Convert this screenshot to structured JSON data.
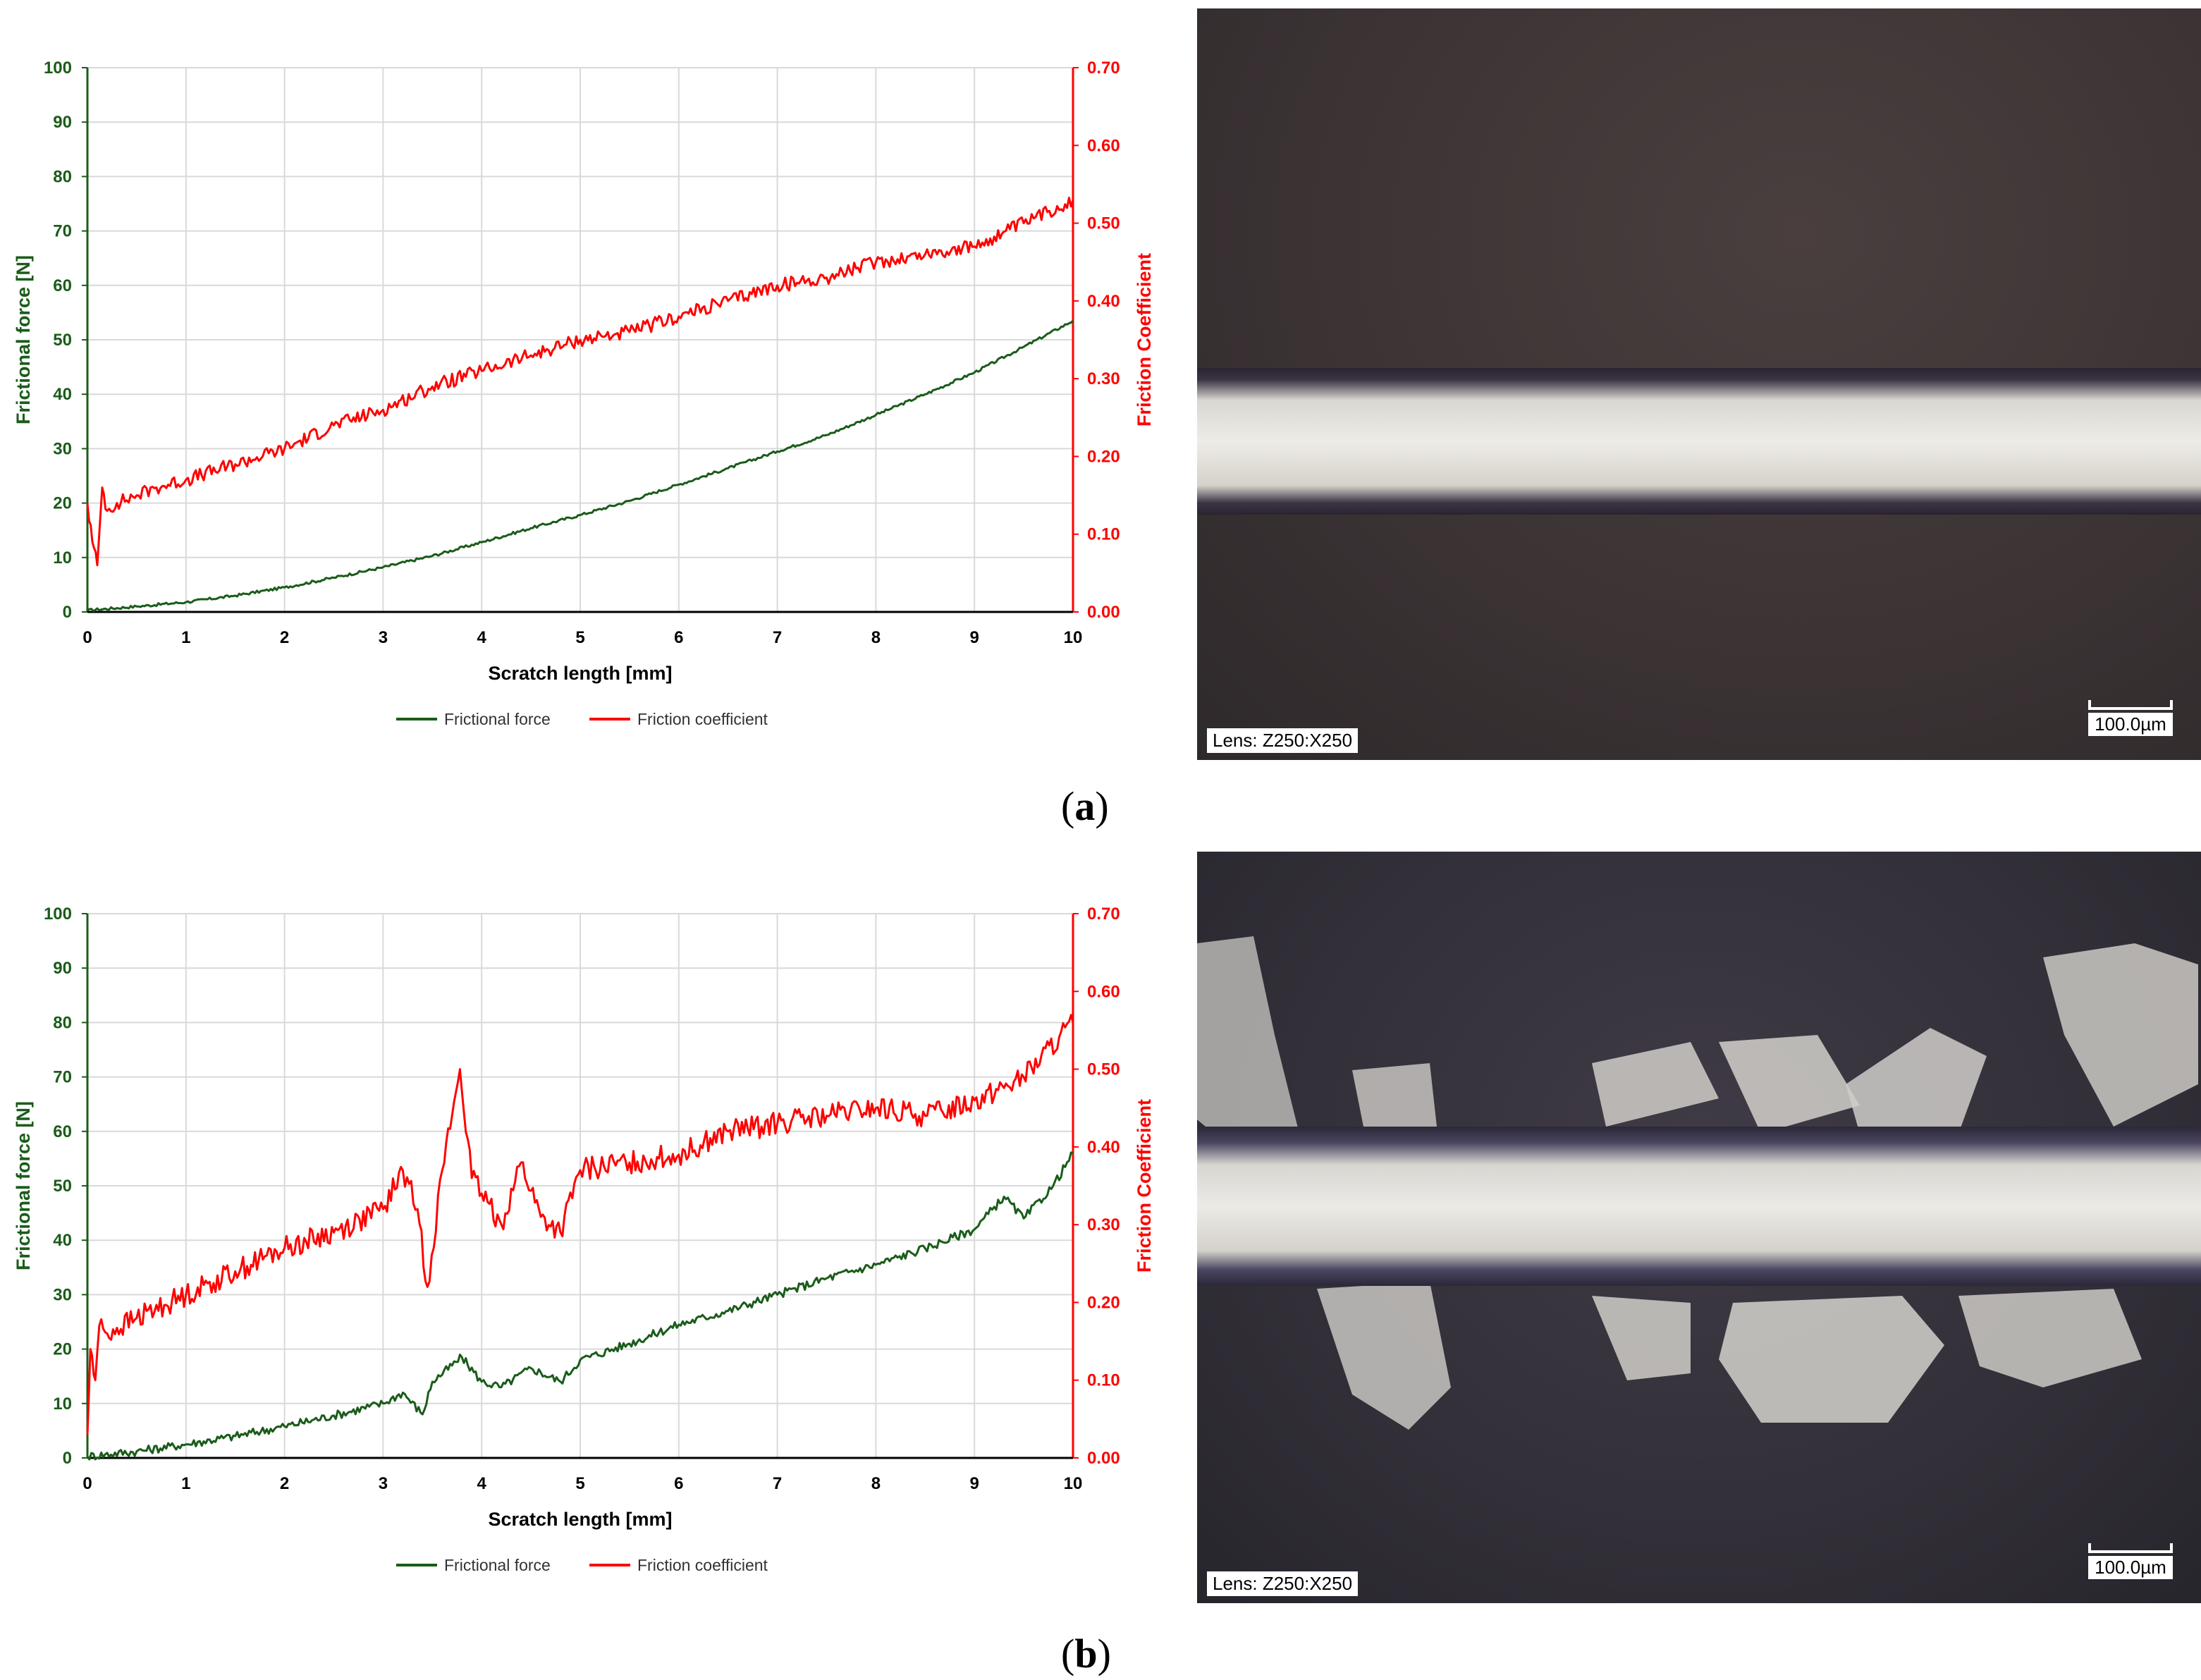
{
  "chart_data": [
    {
      "type": "line",
      "panel": "(a)",
      "xlabel": "Scratch length [mm]",
      "ylabel": "Frictional force [N]",
      "y2label": "Friction Coefficient",
      "xlim": [
        0,
        10
      ],
      "ylim": [
        0,
        100
      ],
      "y2lim": [
        0,
        0.7
      ],
      "xticks": [
        "0",
        "1",
        "2",
        "3",
        "4",
        "5",
        "6",
        "7",
        "8",
        "9",
        "10"
      ],
      "yticks": [
        "0",
        "10",
        "20",
        "30",
        "40",
        "50",
        "60",
        "70",
        "80",
        "90",
        "100"
      ],
      "y2ticks": [
        "0.00",
        "0.10",
        "0.20",
        "0.30",
        "0.40",
        "0.50",
        "0.60",
        "0.70"
      ],
      "grid": true,
      "legend_position": "bottom",
      "series": [
        {
          "name": "Frictional force",
          "axis": "left",
          "color": "#1a5c1a",
          "x": [
            0,
            0.5,
            1,
            1.5,
            2,
            2.5,
            3,
            3.5,
            4,
            4.5,
            5,
            5.5,
            6,
            6.5,
            7,
            7.5,
            8,
            8.5,
            9,
            9.5,
            10
          ],
          "y": [
            0.3,
            1.0,
            1.8,
            3.0,
            4.5,
            6.3,
            8.2,
            10.3,
            12.8,
            15.4,
            17.8,
            20.4,
            23.4,
            26.4,
            29.5,
            32.5,
            36.2,
            40.0,
            44.0,
            48.7,
            53.5
          ]
        },
        {
          "name": "Friction coefficient",
          "axis": "right",
          "color": "#ff0000",
          "x": [
            0,
            0.05,
            0.1,
            0.15,
            0.2,
            0.3,
            0.5,
            0.7,
            1,
            1.5,
            2,
            2.5,
            3,
            3.5,
            4,
            4.5,
            5,
            5.5,
            6,
            6.5,
            7,
            7.5,
            8,
            8.5,
            9,
            9.5,
            10
          ],
          "y": [
            0.14,
            0.09,
            0.06,
            0.16,
            0.13,
            0.14,
            0.15,
            0.16,
            0.17,
            0.19,
            0.21,
            0.24,
            0.26,
            0.29,
            0.31,
            0.33,
            0.35,
            0.36,
            0.38,
            0.4,
            0.42,
            0.43,
            0.45,
            0.46,
            0.47,
            0.5,
            0.53
          ]
        }
      ]
    },
    {
      "type": "line",
      "panel": "(b)",
      "xlabel": "Scratch length [mm]",
      "ylabel": "Frictional force [N]",
      "y2label": "Friction Coefficient",
      "xlim": [
        0,
        10
      ],
      "ylim": [
        0,
        100
      ],
      "y2lim": [
        0,
        0.7
      ],
      "xticks": [
        "0",
        "1",
        "2",
        "3",
        "4",
        "5",
        "6",
        "7",
        "8",
        "9",
        "10"
      ],
      "yticks": [
        "0",
        "10",
        "20",
        "30",
        "40",
        "50",
        "60",
        "70",
        "80",
        "90",
        "100"
      ],
      "y2ticks": [
        "0.00",
        "0.10",
        "0.20",
        "0.30",
        "0.40",
        "0.50",
        "0.60",
        "0.70"
      ],
      "grid": true,
      "legend_position": "bottom",
      "series": [
        {
          "name": "Frictional force",
          "axis": "left",
          "color": "#1a5c1a",
          "x": [
            0,
            0.5,
            1,
            1.5,
            2,
            2.5,
            3,
            3.2,
            3.4,
            3.5,
            3.8,
            4,
            4.2,
            4.5,
            4.8,
            5,
            5.5,
            6,
            6.5,
            7,
            7.5,
            8,
            8.5,
            9,
            9.3,
            9.5,
            9.8,
            10
          ],
          "y": [
            0.3,
            1.2,
            2.5,
            4.0,
            5.8,
            7.8,
            10.0,
            12.0,
            8.0,
            14.0,
            18.5,
            14.0,
            13.0,
            16.5,
            14.0,
            18.0,
            21.0,
            24.5,
            27.0,
            30.0,
            33.0,
            35.5,
            38.5,
            42.0,
            48.0,
            44.0,
            50.0,
            56.0
          ]
        },
        {
          "name": "Friction coefficient",
          "axis": "right",
          "color": "#ff0000",
          "x": [
            0,
            0.03,
            0.08,
            0.12,
            0.2,
            0.5,
            1,
            1.5,
            2,
            2.5,
            3,
            3.2,
            3.35,
            3.45,
            3.6,
            3.78,
            3.9,
            4,
            4.2,
            4.4,
            4.6,
            4.8,
            5,
            5.5,
            6,
            6.5,
            7,
            7.5,
            8,
            8.5,
            9,
            9.5,
            10
          ],
          "y": [
            0.03,
            0.14,
            0.1,
            0.17,
            0.16,
            0.18,
            0.21,
            0.24,
            0.27,
            0.29,
            0.32,
            0.37,
            0.32,
            0.22,
            0.37,
            0.5,
            0.36,
            0.34,
            0.3,
            0.38,
            0.31,
            0.29,
            0.37,
            0.38,
            0.39,
            0.42,
            0.43,
            0.44,
            0.45,
            0.44,
            0.46,
            0.49,
            0.56
          ]
        }
      ]
    }
  ],
  "micrographs": [
    {
      "lens": "Lens: Z250:X250",
      "scale": "100.0µm"
    },
    {
      "lens": "Lens: Z250:X250",
      "scale": "100.0µm"
    }
  ],
  "panel_labels": [
    {
      "open": "(",
      "letter": "a",
      "close": ")"
    },
    {
      "open": "(",
      "letter": "b",
      "close": ")"
    }
  ]
}
